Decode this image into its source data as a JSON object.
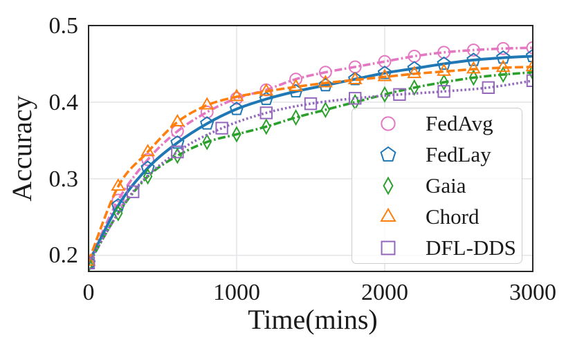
{
  "chart_data": {
    "type": "line",
    "title": "",
    "xlabel": "Time(mins)",
    "ylabel": "Accuracy",
    "xlim": [
      0,
      3000
    ],
    "ylim": [
      0.179,
      0.5
    ],
    "xticks": [
      0,
      1000,
      2000,
      3000
    ],
    "yticks": [
      0.2,
      0.3,
      0.4,
      0.5
    ],
    "grid": true,
    "legend_position": "inside lower-right",
    "series": [
      {
        "name": "FedAvg",
        "color": "#e377c2",
        "linestyle": "dashdot",
        "marker": "circle",
        "x": [
          0,
          200,
          400,
          600,
          800,
          1000,
          1200,
          1400,
          1600,
          1800,
          2000,
          2200,
          2400,
          2600,
          2800,
          3000
        ],
        "values": [
          0.19,
          0.272,
          0.325,
          0.362,
          0.387,
          0.405,
          0.416,
          0.43,
          0.439,
          0.446,
          0.453,
          0.46,
          0.465,
          0.468,
          0.47,
          0.471
        ]
      },
      {
        "name": "FedLay",
        "color": "#1f77b4",
        "linestyle": "solid",
        "marker": "pentagon",
        "x": [
          0,
          200,
          400,
          600,
          800,
          1000,
          1200,
          1400,
          1600,
          1800,
          2000,
          2200,
          2400,
          2600,
          2800,
          3000
        ],
        "values": [
          0.19,
          0.265,
          0.314,
          0.347,
          0.372,
          0.391,
          0.404,
          0.414,
          0.422,
          0.43,
          0.438,
          0.444,
          0.45,
          0.455,
          0.458,
          0.46
        ]
      },
      {
        "name": "Gaia",
        "color": "#2ca02c",
        "linestyle": "dashdot",
        "marker": "thin-diamond",
        "x": [
          0,
          200,
          400,
          600,
          800,
          1000,
          1200,
          1400,
          1600,
          1800,
          2000,
          2200,
          2400,
          2600,
          2800,
          3000
        ],
        "values": [
          0.188,
          0.255,
          0.303,
          0.33,
          0.348,
          0.358,
          0.368,
          0.38,
          0.39,
          0.4,
          0.41,
          0.419,
          0.426,
          0.432,
          0.436,
          0.439
        ]
      },
      {
        "name": "Chord",
        "color": "#ff7f0e",
        "linestyle": "dashed",
        "marker": "triangle-up",
        "x": [
          0,
          200,
          400,
          600,
          800,
          1000,
          1200,
          1400,
          1600,
          1800,
          2000,
          2200,
          2400,
          2600,
          2800,
          3000
        ],
        "values": [
          0.192,
          0.29,
          0.335,
          0.374,
          0.396,
          0.407,
          0.414,
          0.42,
          0.425,
          0.429,
          0.433,
          0.437,
          0.44,
          0.443,
          0.445,
          0.446
        ]
      },
      {
        "name": "DFL-DDS",
        "color": "#9467bd",
        "linestyle": "dotted",
        "marker": "square",
        "x": [
          0,
          300,
          600,
          900,
          1200,
          1500,
          1800,
          2100,
          2400,
          2700,
          3000
        ],
        "values": [
          0.19,
          0.283,
          0.335,
          0.366,
          0.386,
          0.398,
          0.405,
          0.41,
          0.414,
          0.419,
          0.428
        ]
      }
    ]
  },
  "colors": {
    "spine": "#262626",
    "grid": "#e5e5e9",
    "text": "#1a1a1a",
    "legend_border": "#cccccc"
  }
}
